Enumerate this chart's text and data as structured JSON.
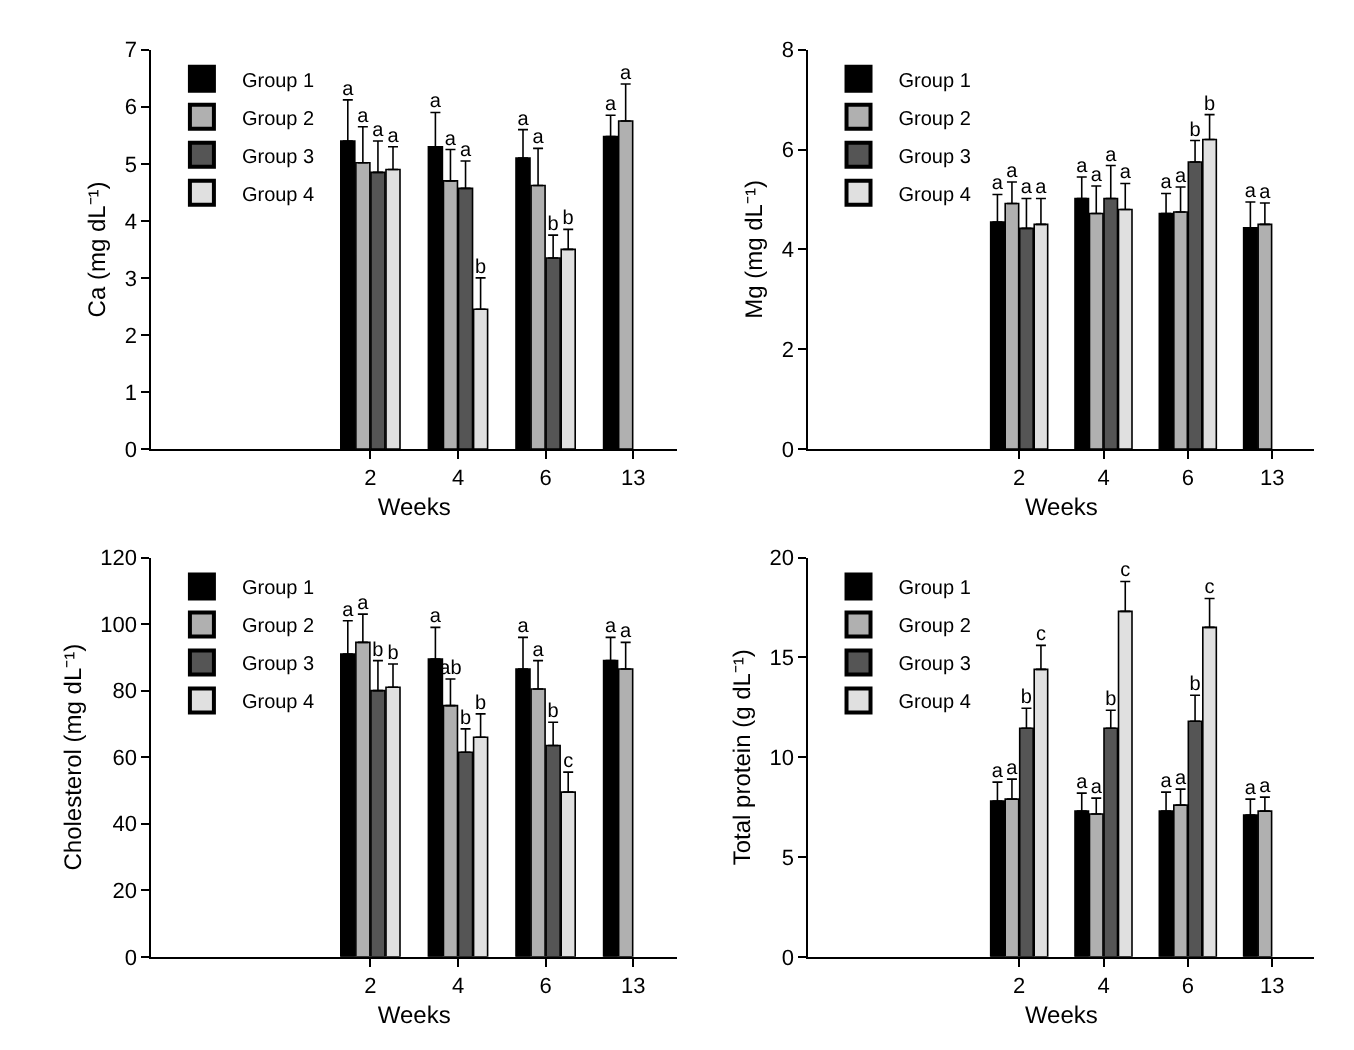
{
  "chart_data": [
    {
      "type": "bar",
      "xlabel": "Weeks",
      "ylabel": "Ca (mg dL⁻¹)",
      "categories": [
        null,
        null,
        "2",
        "4",
        "6",
        "13"
      ],
      "ylim": [
        0,
        7
      ],
      "yticks": [
        0,
        1,
        2,
        3,
        4,
        5,
        6,
        7
      ],
      "grid": false,
      "legend": "top left",
      "series": [
        {
          "name": "Group 1",
          "color": "#000000",
          "values": [
            null,
            null,
            5.4,
            5.3,
            5.1,
            5.48
          ],
          "errors": [
            null,
            null,
            [
              5.4,
              6.12
            ],
            [
              5.3,
              5.9
            ],
            [
              5.1,
              5.6
            ],
            [
              5.48,
              5.85
            ]
          ],
          "value_labels": [
            null,
            null,
            "a",
            "a",
            "a",
            "a"
          ]
        },
        {
          "name": "Group 2",
          "color": "#b0b0b0",
          "values": [
            null,
            null,
            5.02,
            4.7,
            4.62,
            5.75
          ],
          "errors": [
            null,
            null,
            [
              5.02,
              5.65
            ],
            [
              4.7,
              5.25
            ],
            [
              4.62,
              5.27
            ],
            [
              5.75,
              6.4
            ]
          ],
          "value_labels": [
            null,
            null,
            "a",
            "a",
            "a",
            "a"
          ]
        },
        {
          "name": "Group 3",
          "color": "#555555",
          "values": [
            null,
            null,
            4.85,
            4.57,
            3.35,
            null
          ],
          "errors": [
            null,
            null,
            [
              4.85,
              5.4
            ],
            [
              4.57,
              5.05
            ],
            [
              3.35,
              3.75
            ],
            null
          ],
          "value_labels": [
            null,
            null,
            "a",
            "a",
            "b",
            null
          ]
        },
        {
          "name": "Group 4",
          "color": "#e0e0e0",
          "values": [
            null,
            null,
            4.9,
            2.45,
            3.5,
            null
          ],
          "errors": [
            null,
            null,
            [
              4.9,
              5.3
            ],
            [
              2.45,
              3.0
            ],
            [
              3.5,
              3.85
            ],
            null
          ],
          "value_labels": [
            null,
            null,
            "a",
            "b",
            "b",
            null
          ]
        }
      ]
    },
    {
      "type": "bar",
      "xlabel": "Weeks",
      "ylabel": "Mg (mg dL⁻¹)",
      "categories": [
        null,
        null,
        "2",
        "4",
        "6",
        "13"
      ],
      "ylim": [
        0,
        8
      ],
      "yticks": [
        0,
        2,
        4,
        6,
        8
      ],
      "grid": false,
      "legend": "top left",
      "series": [
        {
          "name": "Group 1",
          "color": "#000000",
          "values": [
            null,
            null,
            4.55,
            5.02,
            4.72,
            4.43
          ],
          "errors": [
            null,
            null,
            [
              4.55,
              5.1
            ],
            [
              5.02,
              5.45
            ],
            [
              4.72,
              5.12
            ],
            [
              4.43,
              4.95
            ]
          ],
          "value_labels": [
            null,
            null,
            "a",
            "a",
            "a",
            "a"
          ]
        },
        {
          "name": "Group 2",
          "color": "#b0b0b0",
          "values": [
            null,
            null,
            4.92,
            4.72,
            4.75,
            4.5
          ],
          "errors": [
            null,
            null,
            [
              4.92,
              5.35
            ],
            [
              4.72,
              5.27
            ],
            [
              4.75,
              5.25
            ],
            [
              4.5,
              4.93
            ]
          ],
          "value_labels": [
            null,
            null,
            "a",
            "a",
            "a",
            "a"
          ]
        },
        {
          "name": "Group 3",
          "color": "#555555",
          "values": [
            null,
            null,
            4.42,
            5.02,
            5.75,
            null
          ],
          "errors": [
            null,
            null,
            [
              4.42,
              5.02
            ],
            [
              5.02,
              5.68
            ],
            [
              5.75,
              6.18
            ],
            null
          ],
          "value_labels": [
            null,
            null,
            "a",
            "a",
            "b",
            null
          ]
        },
        {
          "name": "Group 4",
          "color": "#e0e0e0",
          "values": [
            null,
            null,
            4.5,
            4.8,
            6.2,
            null
          ],
          "errors": [
            null,
            null,
            [
              4.5,
              5.02
            ],
            [
              4.8,
              5.32
            ],
            [
              6.2,
              6.7
            ],
            null
          ],
          "value_labels": [
            null,
            null,
            "a",
            "a",
            "b",
            null
          ]
        }
      ]
    },
    {
      "type": "bar",
      "xlabel": "Weeks",
      "ylabel": "Cholesterol (mg dL⁻¹)",
      "categories": [
        null,
        null,
        "2",
        "4",
        "6",
        "13"
      ],
      "ylim": [
        0,
        120
      ],
      "yticks": [
        0,
        20,
        40,
        60,
        80,
        100,
        120
      ],
      "grid": false,
      "legend": "top left",
      "series": [
        {
          "name": "Group 1",
          "color": "#000000",
          "values": [
            null,
            null,
            91,
            89.5,
            86.5,
            89
          ],
          "errors": [
            null,
            null,
            [
              91,
              101
            ],
            [
              89.5,
              99
            ],
            [
              86.5,
              96
            ],
            [
              89,
              96
            ]
          ],
          "value_labels": [
            null,
            null,
            "a",
            "a",
            "a",
            "a"
          ]
        },
        {
          "name": "Group 2",
          "color": "#b0b0b0",
          "values": [
            null,
            null,
            94.5,
            75.5,
            80.5,
            86.5
          ],
          "errors": [
            null,
            null,
            [
              94.5,
              103
            ],
            [
              75.5,
              83.5
            ],
            [
              80.5,
              89
            ],
            [
              86.5,
              94.5
            ]
          ],
          "value_labels": [
            null,
            null,
            "a",
            "ab",
            "a",
            "a"
          ]
        },
        {
          "name": "Group 3",
          "color": "#555555",
          "values": [
            null,
            null,
            80,
            61.5,
            63.5,
            null
          ],
          "errors": [
            null,
            null,
            [
              80,
              89
            ],
            [
              61.5,
              68.5
            ],
            [
              63.5,
              70.5
            ],
            null
          ],
          "value_labels": [
            null,
            null,
            "b",
            "b",
            "b",
            null
          ]
        },
        {
          "name": "Group 4",
          "color": "#e0e0e0",
          "values": [
            null,
            null,
            81,
            66,
            49.5,
            null
          ],
          "errors": [
            null,
            null,
            [
              81,
              88
            ],
            [
              66,
              73
            ],
            [
              49.5,
              55.5
            ],
            null
          ],
          "value_labels": [
            null,
            null,
            "b",
            "b",
            "c",
            null
          ]
        }
      ]
    },
    {
      "type": "bar",
      "xlabel": "Weeks",
      "ylabel": "Total protein (g dL⁻¹)",
      "categories": [
        null,
        null,
        "2",
        "4",
        "6",
        "13"
      ],
      "ylim": [
        0,
        20
      ],
      "yticks": [
        0,
        5,
        10,
        15,
        20
      ],
      "grid": false,
      "legend": "top left",
      "series": [
        {
          "name": "Group 1",
          "color": "#000000",
          "values": [
            null,
            null,
            7.8,
            7.3,
            7.3,
            7.1
          ],
          "errors": [
            null,
            null,
            [
              7.8,
              8.75
            ],
            [
              7.3,
              8.2
            ],
            [
              7.3,
              8.25
            ],
            [
              7.1,
              7.9
            ]
          ],
          "value_labels": [
            null,
            null,
            "a",
            "a",
            "a",
            "a"
          ]
        },
        {
          "name": "Group 2",
          "color": "#b0b0b0",
          "values": [
            null,
            null,
            7.9,
            7.15,
            7.6,
            7.3
          ],
          "errors": [
            null,
            null,
            [
              7.9,
              8.9
            ],
            [
              7.15,
              7.95
            ],
            [
              7.6,
              8.4
            ],
            [
              7.3,
              8.0
            ]
          ],
          "value_labels": [
            null,
            null,
            "a",
            "a",
            "a",
            "a"
          ]
        },
        {
          "name": "Group 3",
          "color": "#555555",
          "values": [
            null,
            null,
            11.45,
            11.45,
            11.8,
            null
          ],
          "errors": [
            null,
            null,
            [
              11.45,
              12.45
            ],
            [
              11.45,
              12.35
            ],
            [
              11.8,
              13.1
            ],
            null
          ],
          "value_labels": [
            null,
            null,
            "b",
            "b",
            "b",
            null
          ]
        },
        {
          "name": "Group 4",
          "color": "#e0e0e0",
          "values": [
            null,
            null,
            14.4,
            17.3,
            16.5,
            null
          ],
          "errors": [
            null,
            null,
            [
              14.4,
              15.6
            ],
            [
              17.3,
              18.8
            ],
            [
              16.5,
              17.95
            ],
            null
          ],
          "value_labels": [
            null,
            null,
            "c",
            "c",
            "c",
            null
          ]
        }
      ]
    }
  ]
}
